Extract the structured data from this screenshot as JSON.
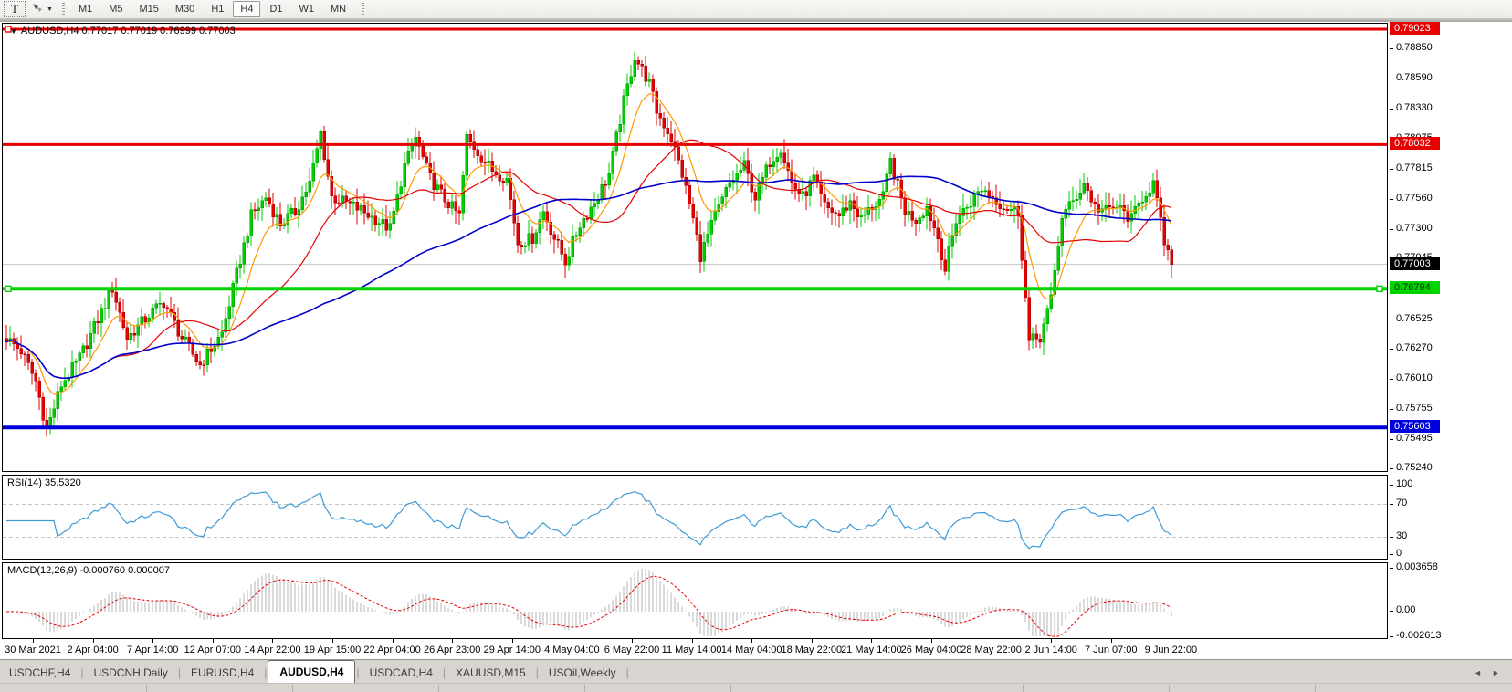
{
  "toolbar": {
    "text_tool_label": "T",
    "timeframes": [
      "M1",
      "M5",
      "M15",
      "M30",
      "H1",
      "H4",
      "D1",
      "W1",
      "MN"
    ],
    "active_timeframe": "H4"
  },
  "chart_data": {
    "type": "candlestick",
    "symbol": "AUDUSD",
    "timeframe": "H4",
    "title": "AUDUSD,H4 0.77017 0.77019 0.76999 0.77003",
    "ohlc_display": {
      "open": "0.77017",
      "high": "0.77019",
      "low": "0.76999",
      "close": "0.77003"
    },
    "price_axis": {
      "min": 0.75228,
      "max": 0.7907,
      "ticks": [
        "0.78850",
        "0.78590",
        "0.78330",
        "0.78075",
        "0.77815",
        "0.77560",
        "0.77300",
        "0.77045",
        "0.76525",
        "0.76270",
        "0.76010",
        "0.75755",
        "0.75495",
        "0.75240"
      ]
    },
    "time_axis": [
      "30 Mar 2021",
      "2 Apr 04:00",
      "7 Apr 14:00",
      "12 Apr 07:00",
      "14 Apr 22:00",
      "19 Apr 15:00",
      "22 Apr 04:00",
      "26 Apr 23:00",
      "29 Apr 14:00",
      "4 May 04:00",
      "6 May 22:00",
      "11 May 14:00",
      "14 May 04:00",
      "18 May 22:00",
      "21 May 14:00",
      "26 May 04:00",
      "28 May 22:00",
      "2 Jun 14:00",
      "7 Jun 07:00",
      "9 Jun 22:00"
    ],
    "horizontal_lines": [
      {
        "price": 0.79023,
        "label": "0.79023",
        "color": "#e60000",
        "text_color": "#ffffff",
        "thickness": 3,
        "anchors": [
          "left"
        ]
      },
      {
        "price": 0.78032,
        "label": "0.78032",
        "color": "#e60000",
        "text_color": "#ffffff",
        "thickness": 3,
        "anchors": []
      },
      {
        "price": 0.76794,
        "label": "0.76794",
        "color": "#00d400",
        "text_color": "#003300",
        "thickness": 4,
        "anchors": [
          "left",
          "right"
        ]
      },
      {
        "price": 0.75603,
        "label": "0.75603",
        "color": "#0000dc",
        "text_color": "#ffffff",
        "thickness": 4,
        "anchors": []
      }
    ],
    "current_price": {
      "value": 0.77003,
      "label": "0.77003",
      "line_color": "#c8c8c8",
      "label_bg": "#000000",
      "label_color": "#ffffff"
    },
    "bars_count": 320,
    "price_waypoints": [
      [
        0,
        0.7637
      ],
      [
        4,
        0.7626
      ],
      [
        8,
        0.76
      ],
      [
        11,
        0.7558
      ],
      [
        15,
        0.7597
      ],
      [
        20,
        0.762
      ],
      [
        25,
        0.7653
      ],
      [
        29,
        0.768
      ],
      [
        33,
        0.7637
      ],
      [
        39,
        0.7657
      ],
      [
        43,
        0.7668
      ],
      [
        48,
        0.7637
      ],
      [
        53,
        0.7614
      ],
      [
        59,
        0.7641
      ],
      [
        63,
        0.7692
      ],
      [
        67,
        0.7742
      ],
      [
        71,
        0.7758
      ],
      [
        75,
        0.7735
      ],
      [
        79,
        0.7746
      ],
      [
        83,
        0.777
      ],
      [
        86,
        0.7813
      ],
      [
        89,
        0.7758
      ],
      [
        93,
        0.7753
      ],
      [
        97,
        0.7747
      ],
      [
        101,
        0.7739
      ],
      [
        105,
        0.7731
      ],
      [
        109,
        0.7785
      ],
      [
        112,
        0.7809
      ],
      [
        116,
        0.7774
      ],
      [
        120,
        0.7756
      ],
      [
        124,
        0.7742
      ],
      [
        126,
        0.7809
      ],
      [
        130,
        0.7793
      ],
      [
        133,
        0.7781
      ],
      [
        137,
        0.7774
      ],
      [
        140,
        0.7719
      ],
      [
        144,
        0.7723
      ],
      [
        147,
        0.7746
      ],
      [
        150,
        0.7723
      ],
      [
        153,
        0.7703
      ],
      [
        157,
        0.7735
      ],
      [
        161,
        0.7754
      ],
      [
        165,
        0.7778
      ],
      [
        169,
        0.784
      ],
      [
        172,
        0.7879
      ],
      [
        176,
        0.7856
      ],
      [
        178,
        0.7832
      ],
      [
        182,
        0.7809
      ],
      [
        185,
        0.7778
      ],
      [
        188,
        0.7739
      ],
      [
        190,
        0.7708
      ],
      [
        194,
        0.7742
      ],
      [
        198,
        0.777
      ],
      [
        202,
        0.7785
      ],
      [
        205,
        0.7758
      ],
      [
        209,
        0.7789
      ],
      [
        212,
        0.7801
      ],
      [
        215,
        0.777
      ],
      [
        218,
        0.7758
      ],
      [
        221,
        0.7774
      ],
      [
        224,
        0.775
      ],
      [
        228,
        0.7742
      ],
      [
        231,
        0.7754
      ],
      [
        234,
        0.7739
      ],
      [
        237,
        0.775
      ],
      [
        240,
        0.7758
      ],
      [
        242,
        0.7789
      ],
      [
        246,
        0.7746
      ],
      [
        249,
        0.7739
      ],
      [
        252,
        0.775
      ],
      [
        255,
        0.7723
      ],
      [
        257,
        0.7696
      ],
      [
        260,
        0.7739
      ],
      [
        264,
        0.7754
      ],
      [
        267,
        0.7766
      ],
      [
        270,
        0.7758
      ],
      [
        273,
        0.775
      ],
      [
        277,
        0.7746
      ],
      [
        280,
        0.7634
      ],
      [
        283,
        0.7638
      ],
      [
        286,
        0.767
      ],
      [
        289,
        0.7742
      ],
      [
        292,
        0.7754
      ],
      [
        295,
        0.777
      ],
      [
        298,
        0.775
      ],
      [
        301,
        0.7746
      ],
      [
        304,
        0.775
      ],
      [
        308,
        0.7739
      ],
      [
        311,
        0.7758
      ],
      [
        314,
        0.777
      ],
      [
        317,
        0.7719
      ],
      [
        319,
        0.77003
      ]
    ],
    "candle_colors": {
      "up_fill": "#00cc00",
      "up_stroke": "#009900",
      "down_fill": "#e60000",
      "down_stroke": "#a00000"
    },
    "moving_averages": [
      {
        "method": "ema",
        "period": 10,
        "color": "#ff9900"
      },
      {
        "method": "sma",
        "period": 30,
        "color": "#e60000"
      },
      {
        "method": "sma",
        "period": 90,
        "color": "#0000cc"
      }
    ],
    "rsi": {
      "label": "RSI(14) 35.5320",
      "period": 14,
      "current": 35.532,
      "levels": [
        30,
        70
      ],
      "axis_ticks": [
        "100",
        "70",
        "30",
        "0"
      ],
      "color": "#3e9bd6",
      "scale_min": 0,
      "scale_max": 100
    },
    "macd": {
      "label": "MACD(12,26,9) -0.000760 0.000007",
      "fast": 12,
      "slow": 26,
      "signal": 9,
      "macd_value": -0.00076,
      "signal_value": 7e-06,
      "axis_ticks": [
        "0.003658",
        "0.00",
        "-0.002613"
      ],
      "histogram_color": "#b4b4b4",
      "signal_color": "#e60000"
    }
  },
  "tabs": {
    "items": [
      "USDCHF,H4",
      "USDCNH,Daily",
      "EURUSD,H4",
      "AUDUSD,H4",
      "USDCAD,H4",
      "XAUUSD,M15",
      "USOil,Weekly"
    ],
    "active": "AUDUSD,H4",
    "scroll_left": "◄",
    "scroll_right": "►"
  }
}
